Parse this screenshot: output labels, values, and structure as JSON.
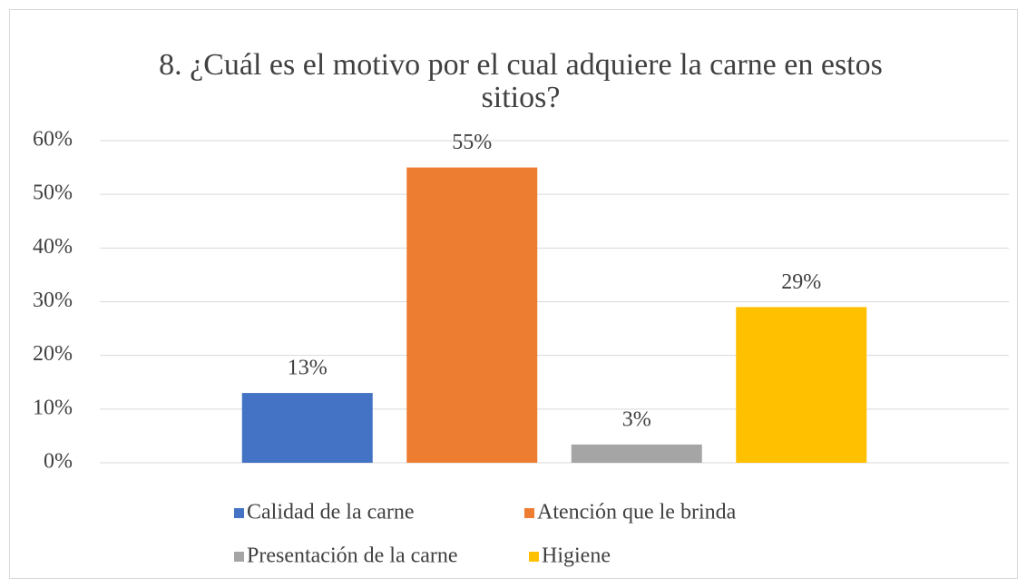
{
  "chart_data": {
    "type": "bar",
    "title": "8. ¿Cuál es el motivo por el cual adquiere la carne en estos sitios?",
    "categories": [
      null
    ],
    "series": [
      {
        "name": "Calidad de la carne",
        "color": "#4472c4",
        "values": [
          13
        ],
        "value_labels": [
          "13%"
        ]
      },
      {
        "name": "Atención que le brinda",
        "color": "#ed7d31",
        "values": [
          55
        ],
        "value_labels": [
          "55%"
        ]
      },
      {
        "name": "Presentación de la carne",
        "color": "#a5a5a5",
        "values": [
          3.4
        ],
        "value_labels": [
          "3%"
        ]
      },
      {
        "name": "Higiene",
        "color": "#ffc000",
        "values": [
          29
        ],
        "value_labels": [
          "29%"
        ]
      }
    ],
    "ylim": [
      0,
      60
    ],
    "yticks": [
      {
        "value": 0,
        "label": "0%"
      },
      {
        "value": 10,
        "label": "10%"
      },
      {
        "value": 20,
        "label": "20%"
      },
      {
        "value": 30,
        "label": "30%"
      },
      {
        "value": 40,
        "label": "40%"
      },
      {
        "value": 50,
        "label": "50%"
      },
      {
        "value": 60,
        "label": "60%"
      }
    ],
    "grid": true,
    "legend": "bottom"
  }
}
